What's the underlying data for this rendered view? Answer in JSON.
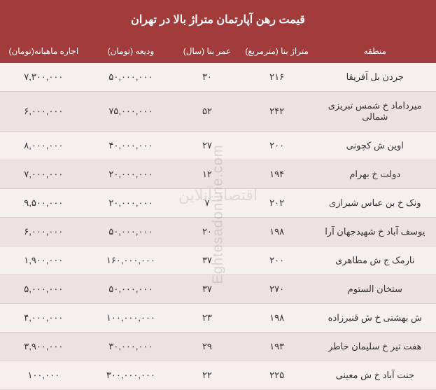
{
  "title": "قیمت رهن آپارتمان متراژ بالا در تهران",
  "columns": {
    "region": "منطقه",
    "area": "متراژ بنا (مترمربع)",
    "age": "عمر بنا (سال)",
    "deposit": "ودیعه (تومان)",
    "rent": "اجاره ماهیانه(تومان)"
  },
  "rows": [
    {
      "region": "جردن بل آفریقا",
      "area": "۲۱۶",
      "age": "۳۰",
      "deposit": "۵۰,۰۰۰,۰۰۰",
      "rent": "۷,۳۰۰,۰۰۰"
    },
    {
      "region": "میرداماد خ شمس تبریزی شمالی",
      "area": "۲۴۲",
      "age": "۵۲",
      "deposit": "۷۵,۰۰۰,۰۰۰",
      "rent": "۶,۰۰۰,۰۰۰"
    },
    {
      "region": "اوین ش کچونی",
      "area": "۲۰۰",
      "age": "۲۷",
      "deposit": "۴۰,۰۰۰,۰۰۰",
      "rent": "۸,۰۰۰,۰۰۰"
    },
    {
      "region": "دولت خ بهرام",
      "area": "۱۹۴",
      "age": "۱۲",
      "deposit": "۲۰,۰۰۰,۰۰۰",
      "rent": "۷,۰۰۰,۰۰۰"
    },
    {
      "region": "ونک خ بن عباس شیرازی",
      "area": "۲۰۲",
      "age": "۷",
      "deposit": "۲۰,۰۰۰,۰۰۰",
      "rent": "۹,۵۰۰,۰۰۰"
    },
    {
      "region": "یوسف آباد خ شهیدجهان آرا",
      "area": "۱۹۸",
      "age": "۲۰",
      "deposit": "۵۰,۰۰۰,۰۰۰",
      "rent": "۶,۰۰۰,۰۰۰"
    },
    {
      "region": "نارمک ج ش مطاهری",
      "area": "۲۰۰",
      "age": "۳۷",
      "deposit": "۱۶۰,۰۰۰,۰۰۰",
      "rent": "۱,۹۰۰,۰۰۰"
    },
    {
      "region": "ستخان الستوم",
      "area": "۲۷۰",
      "age": "۳۷",
      "deposit": "۵۰,۰۰۰,۰۰۰",
      "rent": "۵,۰۰۰,۰۰۰"
    },
    {
      "region": "ش بهشتی خ ش قنبرزاده",
      "area": "۱۹۸",
      "age": "۲۳",
      "deposit": "۱۰۰,۰۰۰,۰۰۰",
      "rent": "۴,۰۰۰,۰۰۰"
    },
    {
      "region": "هفت تیر خ سلیمان خاطر",
      "area": "۱۹۳",
      "age": "۲۹",
      "deposit": "۳۰,۰۰۰,۰۰۰",
      "rent": "۳,۹۰۰,۰۰۰"
    },
    {
      "region": "جنت آباد خ ش معینی",
      "area": "۲۲۵",
      "age": "۲۲",
      "deposit": "۳۰۰,۰۰۰,۰۰۰",
      "rent": "۱۰۰,۰۰۰"
    }
  ],
  "watermark_en": "Eghtesadonline.com",
  "watermark_fa": "اقتصاد آنلاین",
  "styles": {
    "header_bg": "#a23c3c",
    "header_text": "#ffffff",
    "row_odd_bg": "#f5efef",
    "row_even_bg": "#ede2e2",
    "border_color": "#d9cfcf",
    "title_fontsize": 16,
    "header_fontsize": 12,
    "cell_fontsize": 13
  }
}
